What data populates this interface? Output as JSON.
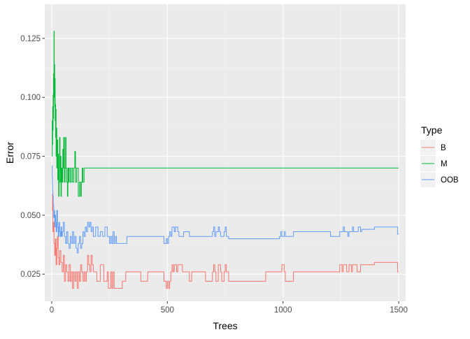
{
  "chart_data": {
    "type": "line",
    "title": "",
    "xlabel": "Trees",
    "ylabel": "Error",
    "xlim": [
      -30,
      1530
    ],
    "ylim": [
      0.0135,
      0.1395
    ],
    "x_ticks": [
      0,
      500,
      1000,
      1500
    ],
    "x_tick_labels": [
      "0",
      "500",
      "1000",
      "1500"
    ],
    "y_ticks": [
      0.025,
      0.05,
      0.075,
      0.1,
      0.125
    ],
    "y_tick_labels": [
      "0.025",
      "0.050",
      "0.075",
      "0.100",
      "0.125"
    ],
    "grid": true,
    "legend": {
      "title": "Type",
      "position": "right",
      "entries": [
        "B",
        "M",
        "OOB"
      ]
    },
    "series": [
      {
        "name": "B",
        "color": "#F8766D",
        "points": [
          [
            1,
            0.052
          ],
          [
            3,
            0.059
          ],
          [
            5,
            0.043
          ],
          [
            8,
            0.047
          ],
          [
            10,
            0.038
          ],
          [
            13,
            0.033
          ],
          [
            16,
            0.04
          ],
          [
            19,
            0.029
          ],
          [
            22,
            0.036
          ],
          [
            25,
            0.041
          ],
          [
            28,
            0.032
          ],
          [
            31,
            0.029
          ],
          [
            35,
            0.035
          ],
          [
            40,
            0.03
          ],
          [
            45,
            0.026
          ],
          [
            50,
            0.033
          ],
          [
            55,
            0.022
          ],
          [
            60,
            0.029
          ],
          [
            65,
            0.026
          ],
          [
            70,
            0.022
          ],
          [
            75,
            0.029
          ],
          [
            80,
            0.022
          ],
          [
            85,
            0.026
          ],
          [
            90,
            0.019
          ],
          [
            95,
            0.026
          ],
          [
            100,
            0.022
          ],
          [
            105,
            0.026
          ],
          [
            110,
            0.019
          ],
          [
            115,
            0.026
          ],
          [
            120,
            0.022
          ],
          [
            125,
            0.029
          ],
          [
            130,
            0.026
          ],
          [
            135,
            0.022
          ],
          [
            140,
            0.026
          ],
          [
            145,
            0.022
          ],
          [
            150,
            0.026
          ],
          [
            155,
            0.033
          ],
          [
            160,
            0.029
          ],
          [
            165,
            0.026
          ],
          [
            170,
            0.033
          ],
          [
            175,
            0.029
          ],
          [
            180,
            0.026
          ],
          [
            190,
            0.026
          ],
          [
            195,
            0.022
          ],
          [
            205,
            0.022
          ],
          [
            210,
            0.029
          ],
          [
            220,
            0.029
          ],
          [
            225,
            0.022
          ],
          [
            235,
            0.022
          ],
          [
            240,
            0.026
          ],
          [
            245,
            0.019
          ],
          [
            255,
            0.026
          ],
          [
            260,
            0.019
          ],
          [
            265,
            0.026
          ],
          [
            270,
            0.019
          ],
          [
            300,
            0.019
          ],
          [
            305,
            0.022
          ],
          [
            315,
            0.022
          ],
          [
            320,
            0.026
          ],
          [
            380,
            0.026
          ],
          [
            385,
            0.022
          ],
          [
            410,
            0.022
          ],
          [
            415,
            0.026
          ],
          [
            480,
            0.026
          ],
          [
            485,
            0.022
          ],
          [
            495,
            0.019
          ],
          [
            500,
            0.022
          ],
          [
            505,
            0.019
          ],
          [
            510,
            0.022
          ],
          [
            515,
            0.026
          ],
          [
            520,
            0.029
          ],
          [
            525,
            0.026
          ],
          [
            530,
            0.029
          ],
          [
            540,
            0.026
          ],
          [
            545,
            0.029
          ],
          [
            560,
            0.029
          ],
          [
            565,
            0.026
          ],
          [
            590,
            0.026
          ],
          [
            595,
            0.022
          ],
          [
            605,
            0.026
          ],
          [
            660,
            0.026
          ],
          [
            665,
            0.022
          ],
          [
            690,
            0.022
          ],
          [
            695,
            0.026
          ],
          [
            700,
            0.029
          ],
          [
            705,
            0.026
          ],
          [
            710,
            0.022
          ],
          [
            720,
            0.029
          ],
          [
            730,
            0.026
          ],
          [
            735,
            0.022
          ],
          [
            745,
            0.026
          ],
          [
            750,
            0.029
          ],
          [
            755,
            0.026
          ],
          [
            760,
            0.026
          ],
          [
            765,
            0.022
          ],
          [
            920,
            0.022
          ],
          [
            925,
            0.026
          ],
          [
            990,
            0.026
          ],
          [
            995,
            0.029
          ],
          [
            1005,
            0.026
          ],
          [
            1010,
            0.022
          ],
          [
            1040,
            0.022
          ],
          [
            1045,
            0.026
          ],
          [
            1240,
            0.026
          ],
          [
            1245,
            0.029
          ],
          [
            1255,
            0.026
          ],
          [
            1260,
            0.029
          ],
          [
            1275,
            0.026
          ],
          [
            1285,
            0.029
          ],
          [
            1295,
            0.026
          ],
          [
            1300,
            0.029
          ],
          [
            1315,
            0.029
          ],
          [
            1320,
            0.026
          ],
          [
            1330,
            0.026
          ],
          [
            1335,
            0.029
          ],
          [
            1390,
            0.029
          ],
          [
            1395,
            0.03
          ],
          [
            1490,
            0.03
          ],
          [
            1495,
            0.026
          ],
          [
            1500,
            0.026
          ]
        ]
      },
      {
        "name": "M",
        "color": "#00BA38",
        "points": [
          [
            1,
            0.075
          ],
          [
            2,
            0.09
          ],
          [
            3,
            0.08
          ],
          [
            4,
            0.096
          ],
          [
            5,
            0.086
          ],
          [
            6,
            0.101
          ],
          [
            7,
            0.091
          ],
          [
            8,
            0.11
          ],
          [
            9,
            0.1
          ],
          [
            10,
            0.128
          ],
          [
            11,
            0.105
          ],
          [
            12,
            0.114
          ],
          [
            13,
            0.096
          ],
          [
            14,
            0.108
          ],
          [
            15,
            0.09
          ],
          [
            16,
            0.097
          ],
          [
            17,
            0.083
          ],
          [
            18,
            0.095
          ],
          [
            19,
            0.075
          ],
          [
            20,
            0.087
          ],
          [
            22,
            0.07
          ],
          [
            24,
            0.082
          ],
          [
            26,
            0.065
          ],
          [
            28,
            0.076
          ],
          [
            30,
            0.058
          ],
          [
            32,
            0.07
          ],
          [
            34,
            0.083
          ],
          [
            36,
            0.064
          ],
          [
            38,
            0.075
          ],
          [
            40,
            0.058
          ],
          [
            42,
            0.07
          ],
          [
            45,
            0.064
          ],
          [
            48,
            0.078
          ],
          [
            50,
            0.07
          ],
          [
            52,
            0.083
          ],
          [
            55,
            0.064
          ],
          [
            58,
            0.07
          ],
          [
            60,
            0.083
          ],
          [
            62,
            0.07
          ],
          [
            65,
            0.064
          ],
          [
            68,
            0.058
          ],
          [
            70,
            0.07
          ],
          [
            72,
            0.064
          ],
          [
            75,
            0.07
          ],
          [
            80,
            0.064
          ],
          [
            85,
            0.07
          ],
          [
            90,
            0.064
          ],
          [
            95,
            0.07
          ],
          [
            100,
            0.077
          ],
          [
            103,
            0.064
          ],
          [
            108,
            0.07
          ],
          [
            115,
            0.058
          ],
          [
            120,
            0.064
          ],
          [
            125,
            0.058
          ],
          [
            128,
            0.064
          ],
          [
            132,
            0.07
          ],
          [
            135,
            0.064
          ],
          [
            140,
            0.07
          ],
          [
            1500,
            0.07
          ]
        ]
      },
      {
        "name": "OOB",
        "color": "#619CFF",
        "points": [
          [
            1,
            0.071
          ],
          [
            2,
            0.066
          ],
          [
            3,
            0.063
          ],
          [
            4,
            0.06
          ],
          [
            5,
            0.058
          ],
          [
            7,
            0.054
          ],
          [
            9,
            0.049
          ],
          [
            11,
            0.052
          ],
          [
            13,
            0.045
          ],
          [
            15,
            0.05
          ],
          [
            17,
            0.047
          ],
          [
            19,
            0.043
          ],
          [
            22,
            0.052
          ],
          [
            25,
            0.045
          ],
          [
            28,
            0.041
          ],
          [
            31,
            0.047
          ],
          [
            34,
            0.043
          ],
          [
            37,
            0.041
          ],
          [
            40,
            0.045
          ],
          [
            43,
            0.041
          ],
          [
            46,
            0.043
          ],
          [
            50,
            0.047
          ],
          [
            55,
            0.041
          ],
          [
            60,
            0.038
          ],
          [
            65,
            0.043
          ],
          [
            70,
            0.038
          ],
          [
            75,
            0.036
          ],
          [
            80,
            0.041
          ],
          [
            85,
            0.038
          ],
          [
            90,
            0.043
          ],
          [
            95,
            0.038
          ],
          [
            100,
            0.041
          ],
          [
            105,
            0.036
          ],
          [
            110,
            0.034
          ],
          [
            115,
            0.038
          ],
          [
            120,
            0.041
          ],
          [
            125,
            0.036
          ],
          [
            130,
            0.038
          ],
          [
            135,
            0.043
          ],
          [
            140,
            0.041
          ],
          [
            145,
            0.045
          ],
          [
            150,
            0.043
          ],
          [
            155,
            0.047
          ],
          [
            160,
            0.045
          ],
          [
            165,
            0.047
          ],
          [
            170,
            0.043
          ],
          [
            175,
            0.045
          ],
          [
            180,
            0.041
          ],
          [
            190,
            0.045
          ],
          [
            200,
            0.041
          ],
          [
            210,
            0.043
          ],
          [
            220,
            0.041
          ],
          [
            230,
            0.045
          ],
          [
            240,
            0.041
          ],
          [
            250,
            0.038
          ],
          [
            255,
            0.041
          ],
          [
            260,
            0.038
          ],
          [
            265,
            0.043
          ],
          [
            270,
            0.038
          ],
          [
            275,
            0.041
          ],
          [
            280,
            0.038
          ],
          [
            320,
            0.038
          ],
          [
            325,
            0.041
          ],
          [
            480,
            0.041
          ],
          [
            485,
            0.038
          ],
          [
            495,
            0.04
          ],
          [
            500,
            0.038
          ],
          [
            505,
            0.041
          ],
          [
            510,
            0.043
          ],
          [
            515,
            0.041
          ],
          [
            520,
            0.045
          ],
          [
            530,
            0.043
          ],
          [
            535,
            0.045
          ],
          [
            545,
            0.043
          ],
          [
            550,
            0.041
          ],
          [
            560,
            0.041
          ],
          [
            570,
            0.043
          ],
          [
            590,
            0.043
          ],
          [
            595,
            0.041
          ],
          [
            690,
            0.041
          ],
          [
            695,
            0.043
          ],
          [
            700,
            0.045
          ],
          [
            705,
            0.041
          ],
          [
            710,
            0.043
          ],
          [
            720,
            0.045
          ],
          [
            725,
            0.043
          ],
          [
            730,
            0.041
          ],
          [
            740,
            0.041
          ],
          [
            745,
            0.043
          ],
          [
            750,
            0.045
          ],
          [
            755,
            0.041
          ],
          [
            760,
            0.041
          ],
          [
            765,
            0.04
          ],
          [
            980,
            0.04
          ],
          [
            985,
            0.041
          ],
          [
            990,
            0.043
          ],
          [
            995,
            0.041
          ],
          [
            1005,
            0.043
          ],
          [
            1010,
            0.041
          ],
          [
            1040,
            0.041
          ],
          [
            1045,
            0.043
          ],
          [
            1200,
            0.043
          ],
          [
            1205,
            0.041
          ],
          [
            1240,
            0.041
          ],
          [
            1245,
            0.043
          ],
          [
            1260,
            0.045
          ],
          [
            1265,
            0.043
          ],
          [
            1280,
            0.041
          ],
          [
            1285,
            0.043
          ],
          [
            1300,
            0.045
          ],
          [
            1305,
            0.043
          ],
          [
            1320,
            0.043
          ],
          [
            1325,
            0.045
          ],
          [
            1335,
            0.043
          ],
          [
            1340,
            0.044
          ],
          [
            1390,
            0.044
          ],
          [
            1395,
            0.045
          ],
          [
            1490,
            0.045
          ],
          [
            1495,
            0.042
          ],
          [
            1500,
            0.042
          ]
        ]
      }
    ]
  }
}
